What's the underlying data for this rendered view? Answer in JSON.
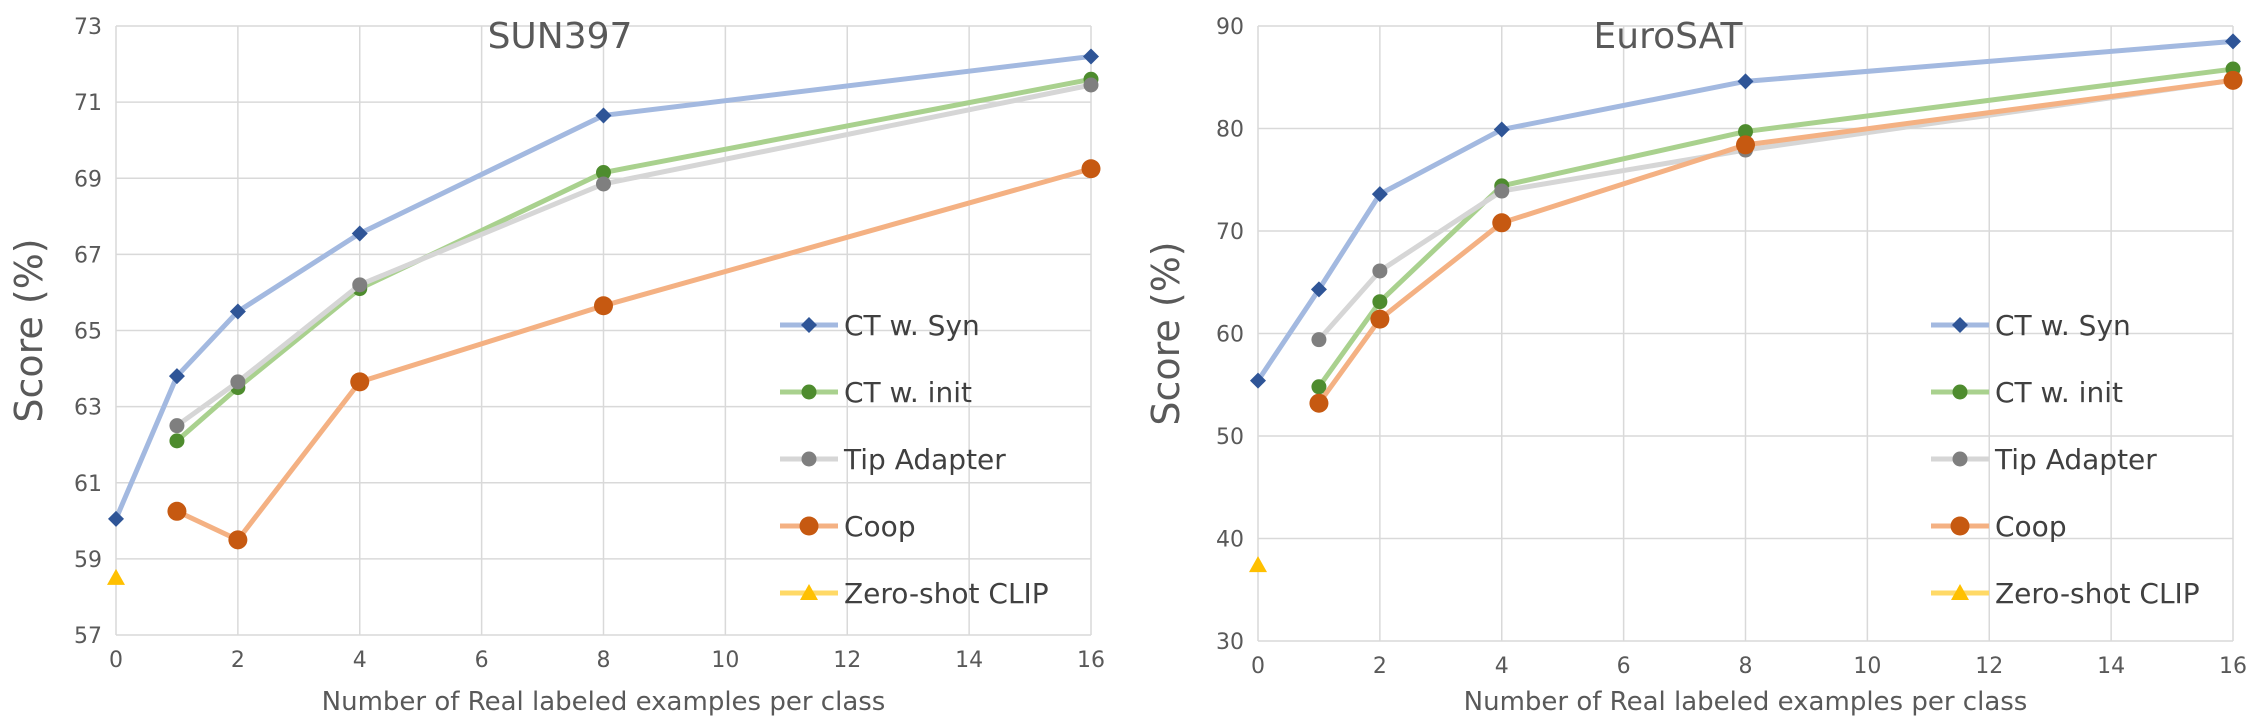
{
  "chart_data": [
    {
      "type": "line",
      "title": "SUN397",
      "xlabel": "Number of Real labeled examples per class",
      "ylabel": "Score (%)",
      "xlim": [
        0,
        16
      ],
      "ylim": [
        57,
        73
      ],
      "xticks": [
        0,
        2,
        4,
        6,
        8,
        10,
        12,
        14,
        16
      ],
      "yticks": [
        57,
        59,
        61,
        63,
        65,
        67,
        69,
        71,
        73
      ],
      "grid": true,
      "legend_position": "bottom-right",
      "series": [
        {
          "name": "CT w. Syn",
          "color": "#A3B9E0",
          "marker": "diamond",
          "marker_color": "#2F5597",
          "x": [
            0,
            1,
            2,
            4,
            8,
            16
          ],
          "y": [
            60.05,
            63.8,
            65.5,
            67.55,
            70.65,
            72.2
          ]
        },
        {
          "name": "CT w. init",
          "color": "#A9D18E",
          "marker": "circle",
          "marker_color": "#4E8C2E",
          "x": [
            1,
            2,
            4,
            8,
            16
          ],
          "y": [
            62.1,
            63.5,
            66.1,
            69.15,
            71.6
          ]
        },
        {
          "name": "Tip Adapter",
          "color": "#D6D6D6",
          "marker": "circle",
          "marker_color": "#7F7F7F",
          "x": [
            1,
            2,
            4,
            8,
            16
          ],
          "y": [
            62.5,
            63.65,
            66.2,
            68.85,
            71.45
          ]
        },
        {
          "name": "Coop",
          "color": "#F4B183",
          "marker": "circle-large",
          "marker_color": "#C65911",
          "x": [
            1,
            2,
            4,
            8,
            16
          ],
          "y": [
            60.25,
            59.5,
            63.65,
            65.65,
            69.25
          ]
        },
        {
          "name": "Zero-shot CLIP",
          "color": "#FFD966",
          "marker": "triangle",
          "marker_color": "#FFC000",
          "x": [
            0
          ],
          "y": [
            58.5
          ]
        }
      ]
    },
    {
      "type": "line",
      "title": "EuroSAT",
      "xlabel": "Number of Real labeled examples per class",
      "ylabel": "Score (%)",
      "xlim": [
        0,
        16
      ],
      "ylim": [
        30,
        90
      ],
      "xticks": [
        0,
        2,
        4,
        6,
        8,
        10,
        12,
        14,
        16
      ],
      "yticks": [
        30,
        40,
        50,
        60,
        70,
        80,
        90
      ],
      "grid": true,
      "legend_position": "bottom-right",
      "series": [
        {
          "name": "CT w. Syn",
          "color": "#A3B9E0",
          "marker": "diamond",
          "marker_color": "#2F5597",
          "x": [
            0,
            1,
            2,
            4,
            8,
            16
          ],
          "y": [
            55.4,
            64.3,
            73.6,
            79.9,
            84.6,
            88.5
          ]
        },
        {
          "name": "CT w. init",
          "color": "#A9D18E",
          "marker": "circle",
          "marker_color": "#4E8C2E",
          "x": [
            1,
            2,
            4,
            8,
            16
          ],
          "y": [
            54.8,
            63.1,
            74.4,
            79.7,
            85.8
          ]
        },
        {
          "name": "Tip Adapter",
          "color": "#D6D6D6",
          "marker": "circle",
          "marker_color": "#7F7F7F",
          "x": [
            1,
            2,
            4,
            8,
            16
          ],
          "y": [
            59.4,
            66.1,
            73.9,
            77.9,
            84.7
          ]
        },
        {
          "name": "Coop",
          "color": "#F4B183",
          "marker": "circle-large",
          "marker_color": "#C65911",
          "x": [
            1,
            2,
            4,
            8,
            16
          ],
          "y": [
            53.2,
            61.4,
            70.8,
            78.4,
            84.7
          ]
        },
        {
          "name": "Zero-shot CLIP",
          "color": "#FFD966",
          "marker": "triangle",
          "marker_color": "#FFC000",
          "x": [
            0
          ],
          "y": [
            37.4
          ]
        }
      ]
    }
  ]
}
